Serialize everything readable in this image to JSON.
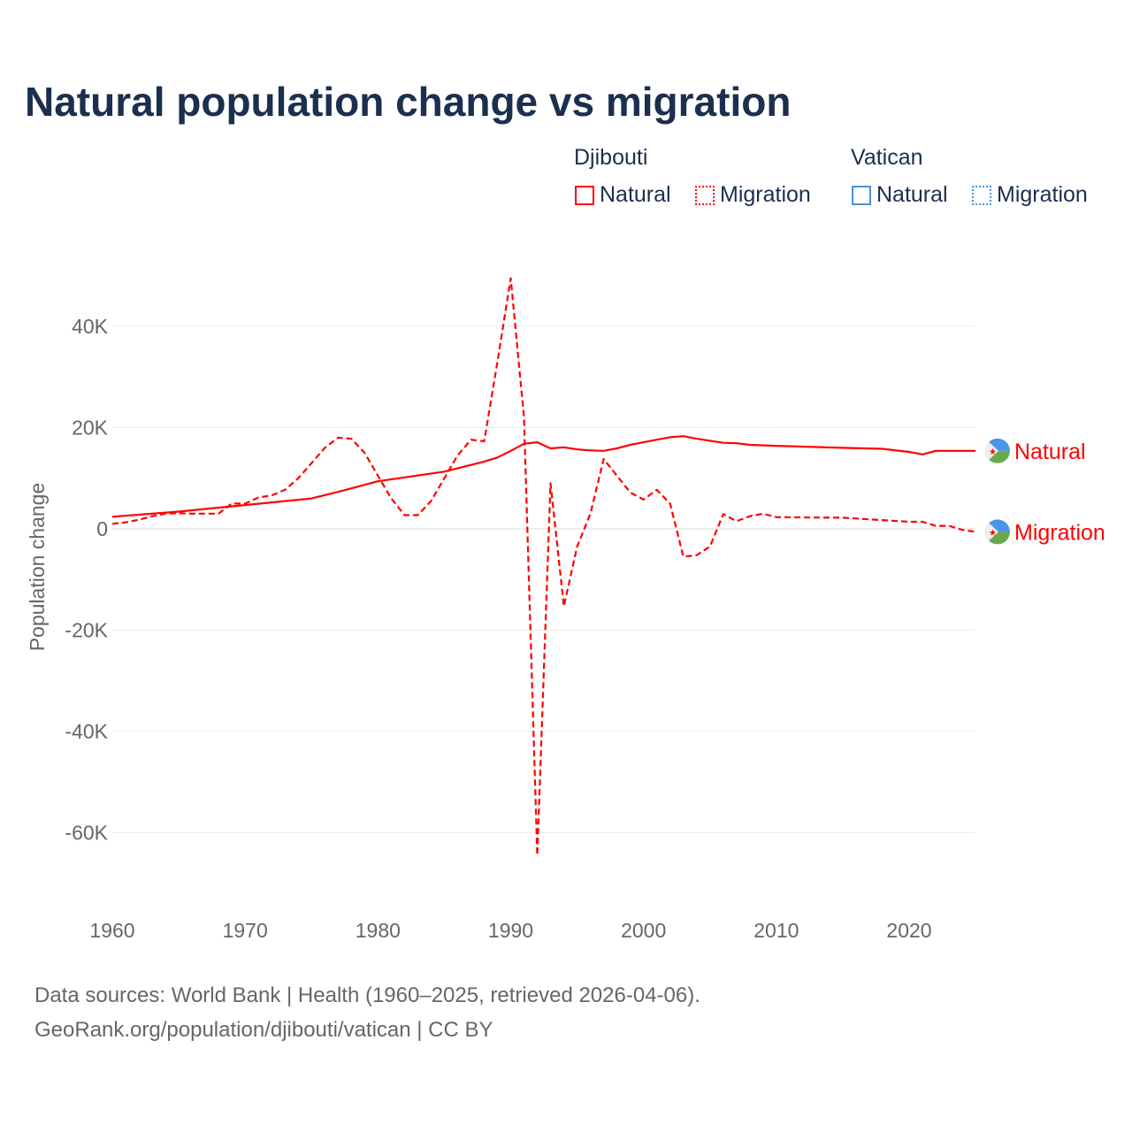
{
  "title": "Natural population change vs migration",
  "legend": {
    "groups": [
      {
        "name": "Djibouti",
        "items": [
          "Natural",
          "Migration"
        ],
        "color": "#ff0000"
      },
      {
        "name": "Vatican",
        "items": [
          "Natural",
          "Migration"
        ],
        "color": "#4a90e2"
      }
    ]
  },
  "footer": {
    "line1": "Data sources: World Bank | Health (1960–2025, retrieved 2026-04-06).",
    "line2": "GeoRank.org/population/djibouti/vatican | CC BY"
  },
  "chart_data": {
    "type": "line",
    "title": "Natural population change vs migration",
    "xlabel": "",
    "ylabel": "Population change",
    "xlim": [
      1960,
      2025
    ],
    "ylim": [
      -70000,
      50000
    ],
    "x_ticks": [
      1960,
      1970,
      1980,
      1990,
      2000,
      2010,
      2020
    ],
    "x_tick_labels": [
      "1960",
      "1970",
      "1980",
      "1990",
      "2000",
      "2010",
      "2020"
    ],
    "y_ticks": [
      -60000,
      -40000,
      -20000,
      0,
      20000,
      40000
    ],
    "y_tick_labels": [
      "-60K",
      "-40K",
      "-20K",
      "0",
      "20K",
      "40K"
    ],
    "grid": true,
    "legend_position": "top-right",
    "end_labels": [
      "Natural",
      "Migration"
    ],
    "series": [
      {
        "name": "Djibouti Natural",
        "label": "Natural",
        "style": "solid",
        "color": "#ff0000",
        "x": [
          1960,
          1965,
          1970,
          1975,
          1977,
          1980,
          1985,
          1988,
          1989,
          1990,
          1991,
          1992,
          1993,
          1994,
          1995,
          1996,
          1997,
          1998,
          1999,
          2000,
          2001,
          2002,
          2003,
          2004,
          2005,
          2006,
          2007,
          2008,
          2010,
          2015,
          2018,
          2020,
          2021,
          2022,
          2023,
          2025
        ],
        "y": [
          2400,
          3400,
          4700,
          6000,
          7300,
          9400,
          11300,
          13300,
          14100,
          15400,
          16800,
          17100,
          15900,
          16100,
          15700,
          15500,
          15400,
          15900,
          16600,
          17100,
          17600,
          18100,
          18300,
          17800,
          17400,
          17000,
          16900,
          16600,
          16400,
          16000,
          15800,
          15200,
          14700,
          15400,
          15400,
          15400
        ]
      },
      {
        "name": "Djibouti Migration",
        "label": "Migration",
        "style": "dashed",
        "color": "#ff0000",
        "x": [
          1960,
          1961,
          1962,
          1963,
          1964,
          1965,
          1966,
          1967,
          1968,
          1969,
          1970,
          1971,
          1972,
          1973,
          1974,
          1975,
          1976,
          1977,
          1978,
          1979,
          1980,
          1981,
          1982,
          1983,
          1984,
          1985,
          1986,
          1987,
          1988,
          1989,
          1990,
          1991,
          1992,
          1993,
          1994,
          1995,
          1996,
          1997,
          1998,
          1999,
          2000,
          2001,
          2002,
          2003,
          2004,
          2005,
          2006,
          2007,
          2008,
          2009,
          2010,
          2015,
          2020,
          2021,
          2022,
          2023,
          2024,
          2025
        ],
        "y": [
          1000,
          1300,
          1800,
          2500,
          3000,
          3100,
          3000,
          3000,
          3000,
          5000,
          5000,
          6200,
          6600,
          7700,
          10000,
          13000,
          16000,
          18000,
          17800,
          15000,
          10500,
          6000,
          2700,
          2700,
          5500,
          10000,
          14500,
          17600,
          17300,
          33000,
          49500,
          22000,
          -64500,
          9000,
          -15300,
          -3500,
          3000,
          13800,
          10500,
          7200,
          5800,
          7700,
          5000,
          -5500,
          -5200,
          -3500,
          2900,
          1500,
          2500,
          3000,
          2300,
          2200,
          1400,
          1400,
          600,
          600,
          -200,
          -600
        ]
      }
    ]
  }
}
